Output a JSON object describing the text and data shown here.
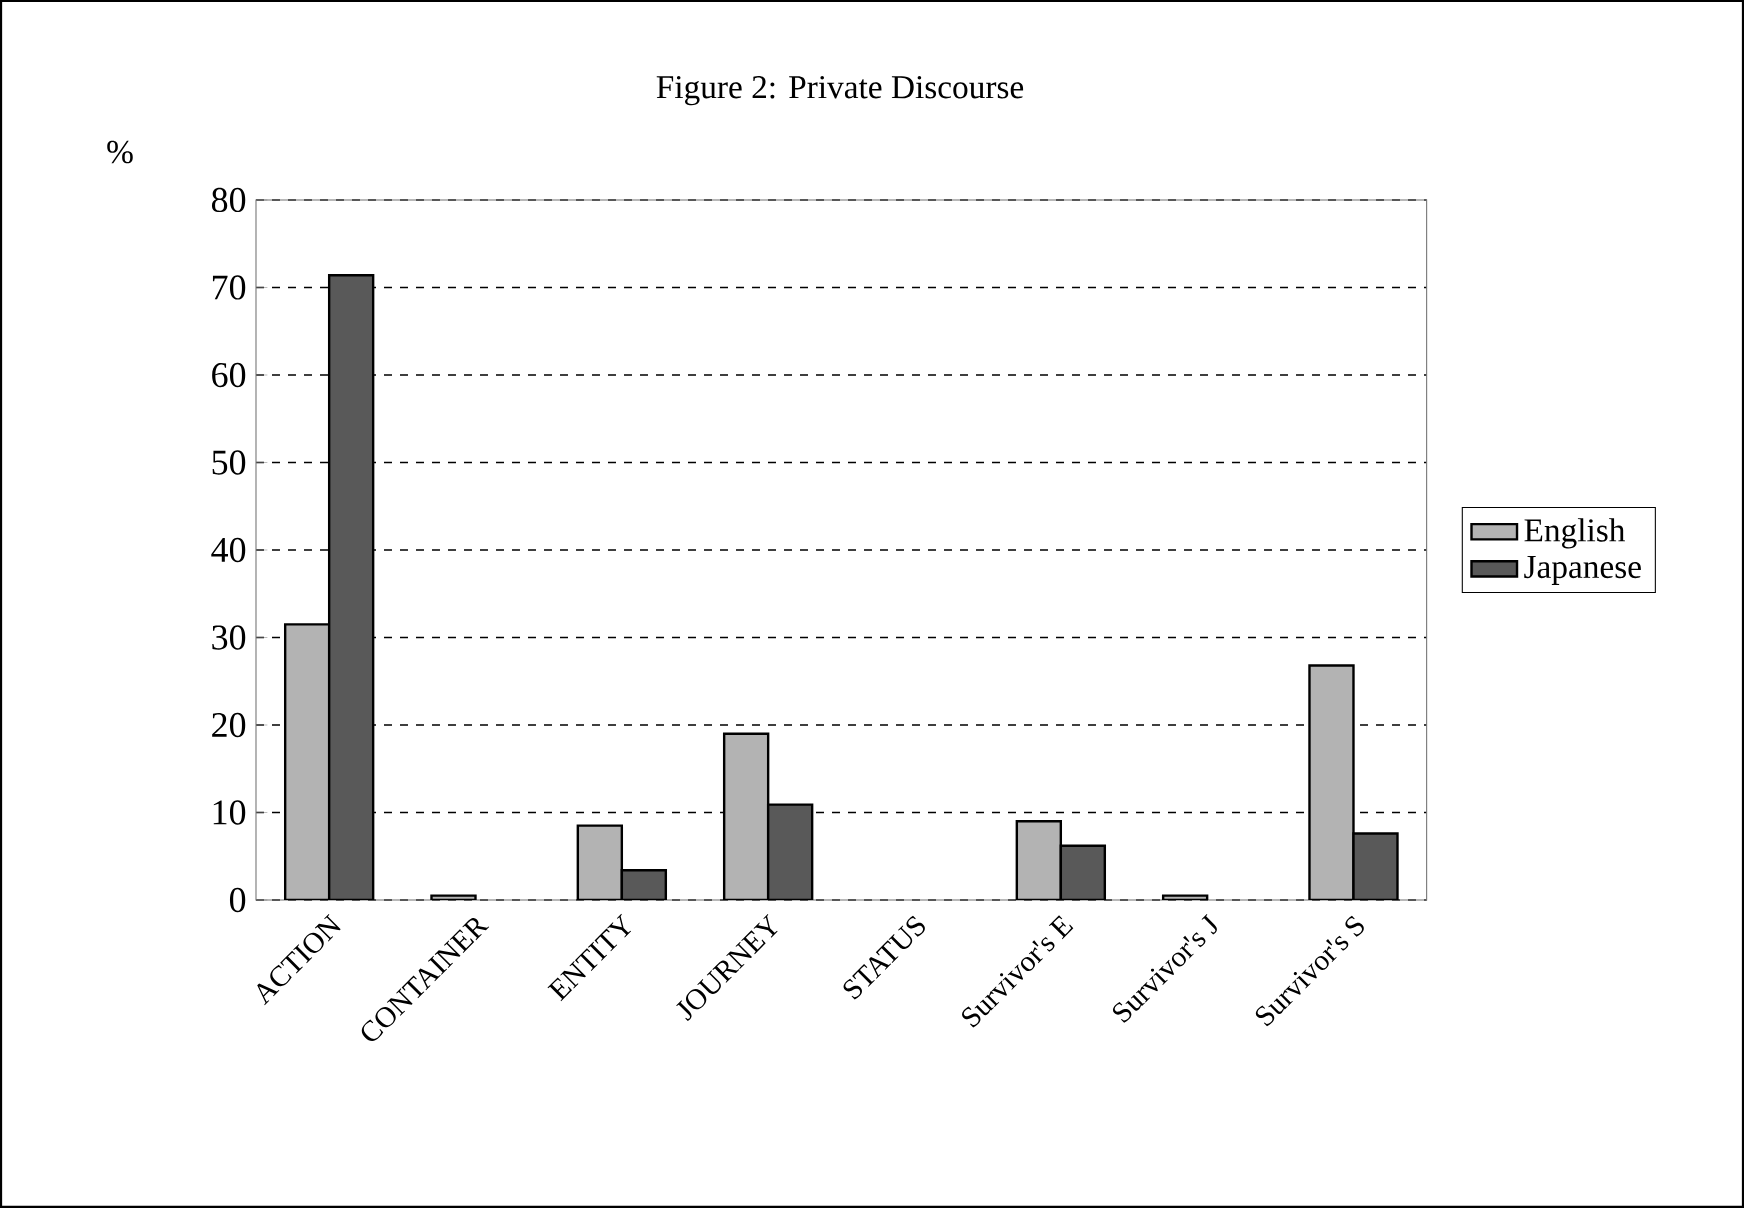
{
  "chart_data": {
    "type": "bar",
    "title": "Figure 2: Private Discourse",
    "ylabel": "%",
    "categories": [
      "ACTION",
      "CONTAINER",
      "ENTITY",
      "JOURNEY",
      "STATUS",
      "Survivor's E",
      "Survivor's J",
      "Survivor's S"
    ],
    "series": [
      {
        "name": "English",
        "color": "#b3b3b3",
        "values": [
          31.5,
          0.5,
          8.5,
          19.0,
          0,
          9.0,
          0.5,
          26.8
        ]
      },
      {
        "name": "Japanese",
        "color": "#595959",
        "values": [
          71.4,
          0,
          3.4,
          10.9,
          0,
          6.2,
          0,
          7.6
        ]
      }
    ],
    "ylim": [
      0,
      80
    ],
    "yticks": [
      0,
      10,
      20,
      30,
      40,
      50,
      60,
      70,
      80
    ],
    "grid": "y",
    "legend": "right"
  }
}
